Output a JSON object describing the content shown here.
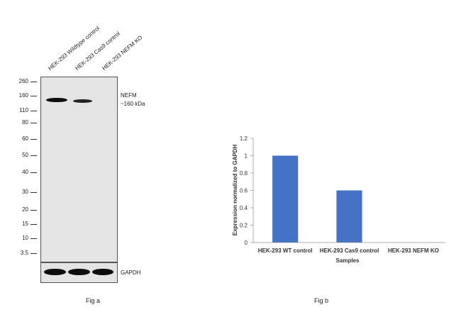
{
  "fig_a": {
    "lanes": [
      "HEK-293 Wildtype control",
      "HEK-293 Cas9 control",
      "HEK-293 NEFM KO"
    ],
    "markers": [
      "260",
      "160",
      "110",
      "80",
      "60",
      "50",
      "40",
      "30",
      "20",
      "15",
      "10",
      "3.5"
    ],
    "target_label": "NEFM",
    "target_size": "~160 kDa",
    "loading_label": "GAPDH",
    "caption": "Fig a"
  },
  "fig_b": {
    "caption": "Fig b"
  },
  "chart_data": {
    "type": "bar",
    "categories": [
      "HEK-293 WT control",
      "HEK-293 Cas9 control",
      "HEK-293 NEFM KO"
    ],
    "values": [
      1.0,
      0.6,
      0.0
    ],
    "title": "",
    "xlabel": "Samples",
    "ylabel": "Expression normalized to GAPDH",
    "ylim": [
      0,
      1.2
    ],
    "yticks": [
      "0",
      "0.2",
      "0.4",
      "0.6",
      "0.8",
      "1",
      "1.2"
    ],
    "bar_color": "#4472c4",
    "grid": false,
    "legend": "none"
  }
}
